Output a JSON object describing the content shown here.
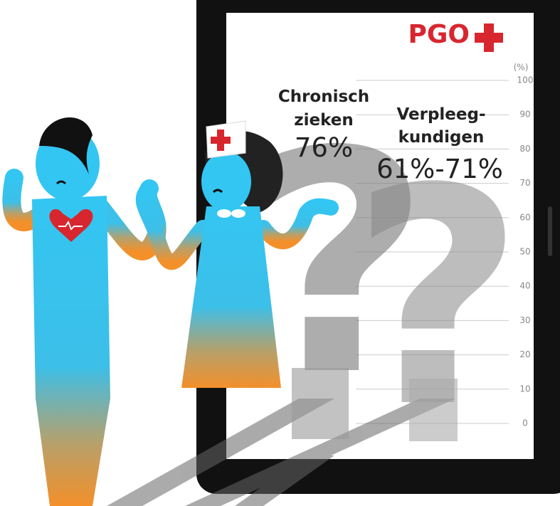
{
  "logo": "PGO",
  "axis": {
    "unit": "(%)",
    "ticks": [
      0,
      10,
      20,
      30,
      40,
      50,
      60,
      70,
      80,
      90,
      100
    ]
  },
  "groups": [
    {
      "lines": [
        "Chronisch",
        "zieken"
      ],
      "value": "76%"
    },
    {
      "lines": [
        "Verpleeg-",
        "kundigen"
      ],
      "value": "61%-71%"
    }
  ]
}
